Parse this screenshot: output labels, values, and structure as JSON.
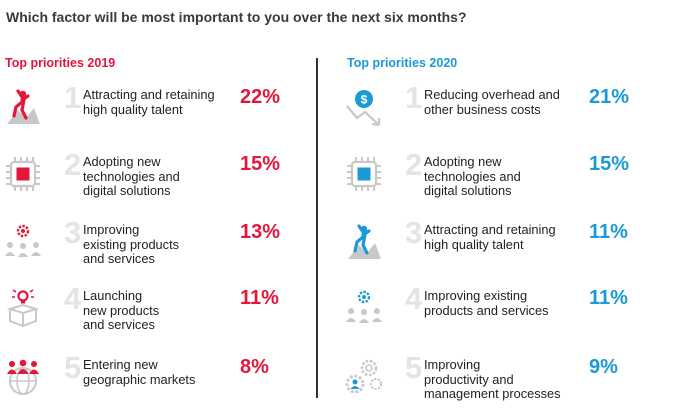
{
  "question": "Which factor will be most important to you over the next six months?",
  "colors": {
    "red": "#e4163b",
    "blue": "#1b9ad6",
    "gray": "#c8c8c8",
    "rank": "#e4e4e4"
  },
  "chart_data": {
    "type": "table",
    "columns": [
      {
        "title": "Top priorities 2019",
        "items": [
          {
            "rank": "1",
            "label_lines": [
              "Attracting and retaining",
              "high quality talent"
            ],
            "percent": "22%",
            "value": 22,
            "icon": "climber-icon"
          },
          {
            "rank": "2",
            "label_lines": [
              "Adopting new",
              "technologies and",
              "digital solutions"
            ],
            "percent": "15%",
            "value": 15,
            "icon": "chip-icon"
          },
          {
            "rank": "3",
            "label_lines": [
              "Improving",
              "existing products",
              "and services"
            ],
            "percent": "13%",
            "value": 13,
            "icon": "team-gear-icon"
          },
          {
            "rank": "4",
            "label_lines": [
              "Launching",
              "new products",
              "and services"
            ],
            "percent": "11%",
            "value": 11,
            "icon": "lightbulb-box-icon"
          },
          {
            "rank": "5",
            "label_lines": [
              "Entering new",
              "geographic markets"
            ],
            "percent": "8%",
            "value": 8,
            "icon": "globe-people-icon"
          }
        ]
      },
      {
        "title": "Top priorities 2020",
        "items": [
          {
            "rank": "1",
            "label_lines": [
              "Reducing overhead and",
              "other business costs"
            ],
            "percent": "21%",
            "value": 21,
            "icon": "dollar-down-icon"
          },
          {
            "rank": "2",
            "label_lines": [
              "Adopting new",
              "technologies and",
              "digital solutions"
            ],
            "percent": "15%",
            "value": 15,
            "icon": "chip-icon"
          },
          {
            "rank": "3",
            "label_lines": [
              "Attracting and retaining",
              "high quality talent"
            ],
            "percent": "11%",
            "value": 11,
            "icon": "climber-icon"
          },
          {
            "rank": "4",
            "label_lines": [
              "Improving existing",
              "products and services"
            ],
            "percent": "11%",
            "value": 11,
            "icon": "team-gear-icon"
          },
          {
            "rank": "5",
            "label_lines": [
              "Improving",
              "productivity and",
              "management processes"
            ],
            "percent": "9%",
            "value": 9,
            "icon": "gears-person-icon"
          }
        ]
      }
    ]
  }
}
